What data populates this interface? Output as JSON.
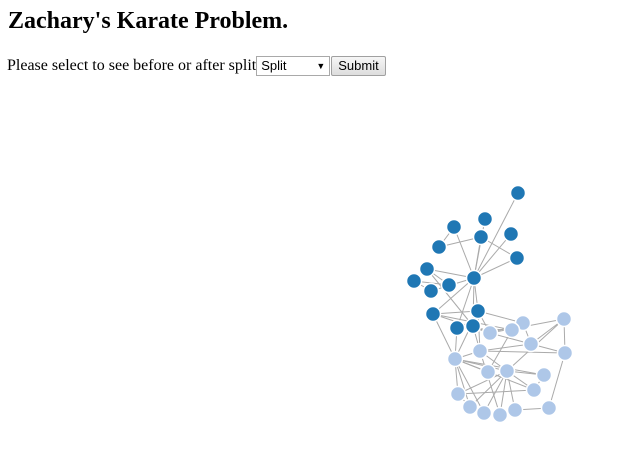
{
  "page": {
    "title": "Zachary's Karate Problem.",
    "prompt_label": "Please select to see before or after split",
    "select_value": "Split",
    "submit_label": "Submit"
  },
  "colors": {
    "group_a": "#1f77b4",
    "group_b": "#aec7e8",
    "link": "#aaaaaa"
  },
  "graph": {
    "groups": [
      1,
      1,
      1,
      1,
      1,
      1,
      1,
      1,
      1,
      1,
      1,
      1,
      1,
      1,
      1,
      1,
      2,
      2,
      2,
      2,
      2,
      2,
      2,
      2,
      2,
      2,
      2,
      2,
      2,
      2,
      2,
      2,
      2,
      2
    ],
    "links": [
      [
        0,
        4
      ],
      [
        1,
        4
      ],
      [
        2,
        4
      ],
      [
        3,
        4
      ],
      [
        4,
        6
      ],
      [
        4,
        8
      ],
      [
        4,
        10
      ],
      [
        4,
        13
      ],
      [
        4,
        12
      ],
      [
        5,
        6
      ],
      [
        5,
        2
      ],
      [
        6,
        7
      ],
      [
        7,
        4
      ],
      [
        9,
        10
      ],
      [
        9,
        11
      ],
      [
        11,
        8
      ],
      [
        8,
        14
      ],
      [
        14,
        4
      ],
      [
        15,
        4
      ],
      [
        12,
        15
      ],
      [
        13,
        14
      ],
      [
        14,
        16
      ],
      [
        15,
        16
      ],
      [
        15,
        17
      ],
      [
        12,
        16
      ],
      [
        12,
        18
      ],
      [
        13,
        18
      ],
      [
        14,
        22
      ],
      [
        15,
        22
      ],
      [
        15,
        23
      ],
      [
        13,
        23
      ],
      [
        16,
        17
      ],
      [
        17,
        18
      ],
      [
        16,
        19
      ],
      [
        17,
        19
      ],
      [
        19,
        20
      ],
      [
        19,
        22
      ],
      [
        20,
        21
      ],
      [
        22,
        23
      ],
      [
        23,
        24
      ],
      [
        22,
        24
      ],
      [
        18,
        25
      ],
      [
        25,
        23
      ],
      [
        24,
        26
      ],
      [
        24,
        27
      ],
      [
        24,
        28
      ],
      [
        24,
        29
      ],
      [
        24,
        30
      ],
      [
        23,
        26
      ],
      [
        23,
        27
      ],
      [
        23,
        28
      ],
      [
        23,
        29
      ],
      [
        23,
        30
      ],
      [
        26,
        27
      ],
      [
        27,
        28
      ],
      [
        28,
        29
      ],
      [
        29,
        30
      ],
      [
        24,
        31
      ],
      [
        22,
        31
      ],
      [
        24,
        32
      ],
      [
        31,
        32
      ],
      [
        19,
        21
      ],
      [
        21,
        33
      ],
      [
        33,
        32
      ],
      [
        16,
        20
      ],
      [
        22,
        21
      ],
      [
        20,
        24
      ],
      [
        12,
        23
      ]
    ]
  }
}
